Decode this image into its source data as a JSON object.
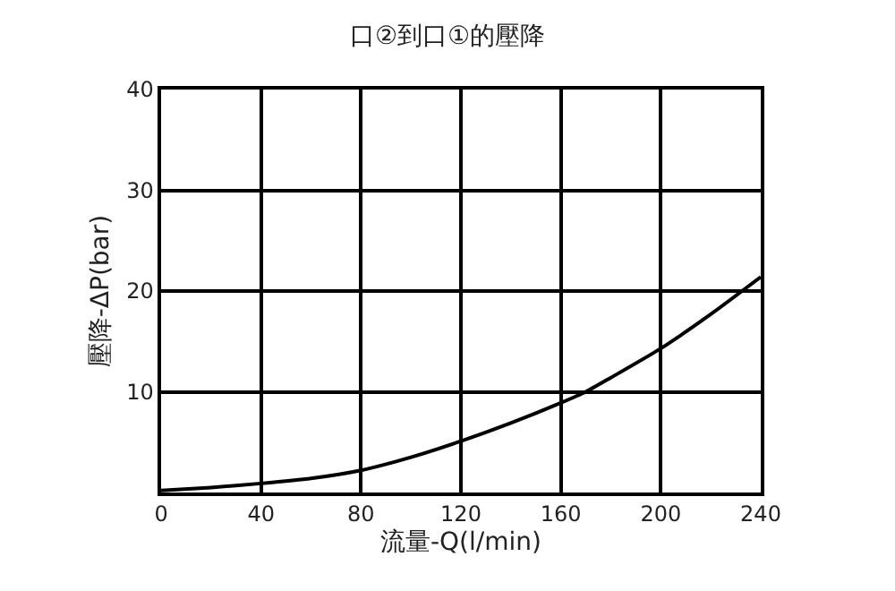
{
  "chart_data": {
    "type": "line",
    "title": "口②到口①的壓降",
    "xlabel": "流量-Q(l/min)",
    "ylabel": "壓降-ΔP(bar)",
    "x": [
      0,
      20,
      40,
      60,
      80,
      100,
      120,
      140,
      160,
      170,
      180,
      200,
      220,
      240
    ],
    "series": [
      {
        "color": "#000000",
        "values": [
          0.2,
          0.5,
          0.9,
          1.4,
          2.2,
          3.5,
          5.1,
          6.9,
          8.9,
          10,
          11.4,
          14.3,
          17.7,
          21.4
        ]
      }
    ],
    "xlim": [
      0,
      240
    ],
    "xticks": [
      0,
      40,
      80,
      120,
      160,
      200,
      240
    ],
    "ylim": [
      0,
      40
    ],
    "yticks": [
      {
        "value": 0,
        "label": null
      },
      10,
      20,
      30,
      40
    ],
    "grid": true,
    "legend": false,
    "marker": "none",
    "line_style": "solid"
  }
}
